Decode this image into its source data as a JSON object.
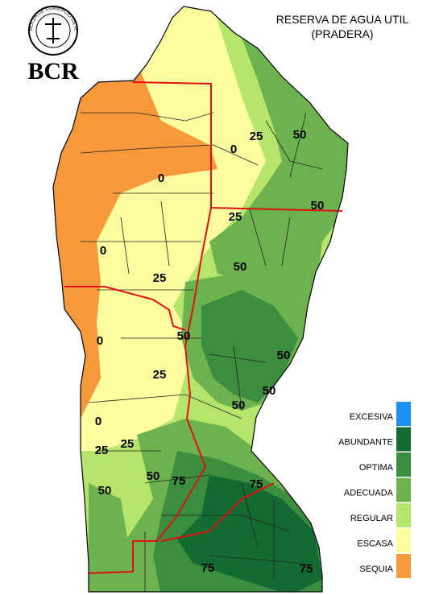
{
  "header": {
    "title_line1": "RESERVA DE AGUA UTIL",
    "title_line2": "(PRADERA)"
  },
  "logo": {
    "name": "BCR",
    "ring_text": "BOLSA DE COMERCIO DE ROSARIO"
  },
  "legend": {
    "items": [
      {
        "label": "EXCESIVA",
        "color": "#1e90f0"
      },
      {
        "label": "ABUNDANTE",
        "color": "#136b32"
      },
      {
        "label": "OPTIMA",
        "color": "#3b8e3f"
      },
      {
        "label": "ADECUADA",
        "color": "#6cb24e"
      },
      {
        "label": "REGULAR",
        "color": "#b5e56a"
      },
      {
        "label": "ESCASA",
        "color": "#fdfc9e"
      },
      {
        "label": "SEQUIA",
        "color": "#f6993a"
      }
    ]
  },
  "contour_labels": [
    "25",
    "50",
    "0",
    "0",
    "25",
    "50",
    "0",
    "50",
    "25",
    "50",
    "0",
    "50",
    "25",
    "50",
    "50",
    "0",
    "25",
    "25",
    "50",
    "75",
    "75",
    "50",
    "75",
    "75"
  ]
}
